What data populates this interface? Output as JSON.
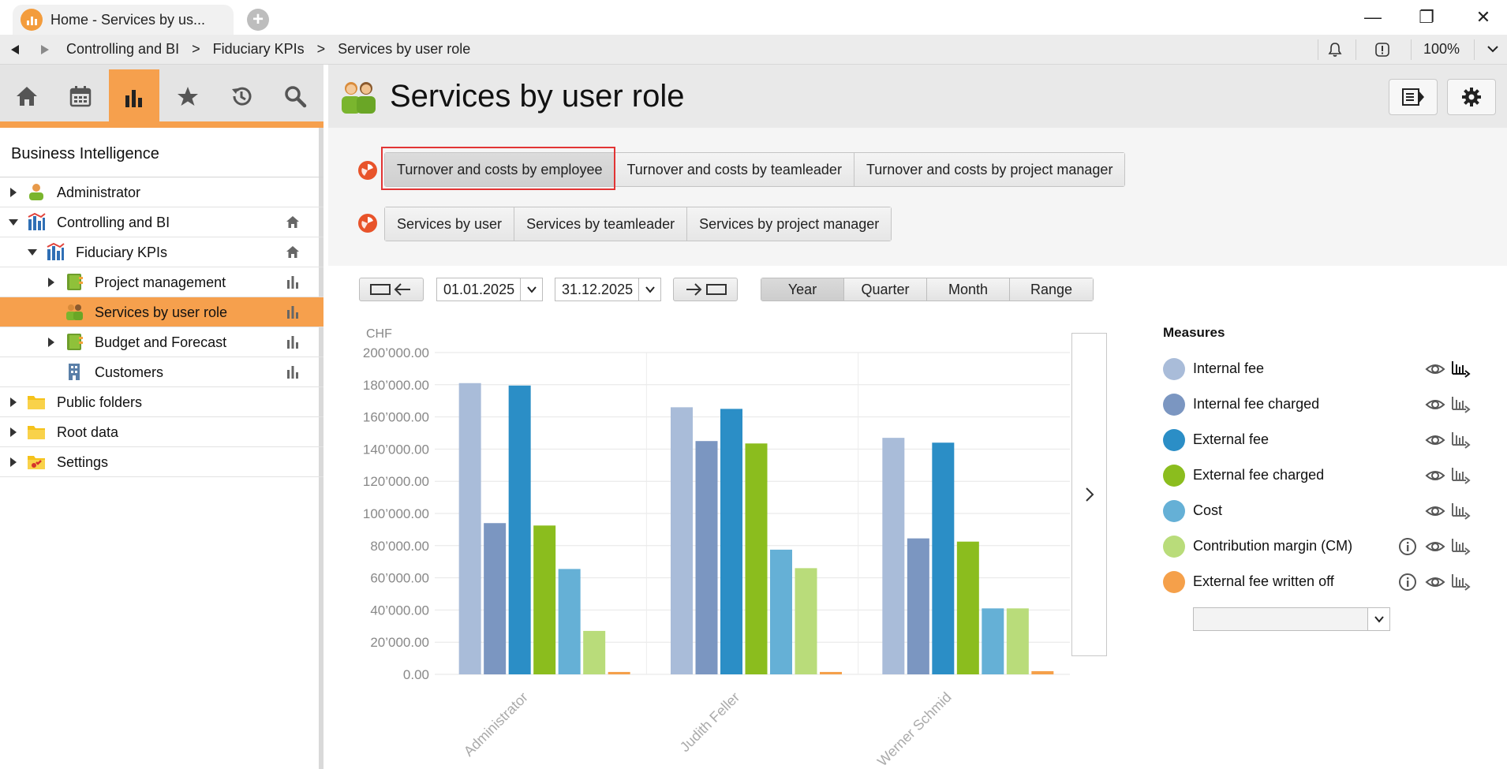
{
  "window": {
    "tab_title": "Home - Services by us...",
    "minimize": "—",
    "restore": "❐",
    "close": "✕"
  },
  "address_bar": {
    "crumbs": [
      "Controlling and BI",
      "Fiduciary KPIs",
      "Services by user role"
    ],
    "separator": ">",
    "zoom": "100%"
  },
  "sidebar": {
    "nav_tabs": [
      "home-icon",
      "calendar-icon",
      "bar-chart-icon",
      "star-icon",
      "history-icon",
      "search-icon"
    ],
    "active_tab": 2,
    "title": "Business Intelligence",
    "tree": [
      {
        "label": "Administrator",
        "level": 0,
        "expander": "right",
        "icon": "user-icon",
        "action": ""
      },
      {
        "label": "Controlling and BI",
        "level": 0,
        "expander": "down",
        "icon": "chart-folder-icon",
        "action": "home-icon"
      },
      {
        "label": "Fiduciary KPIs",
        "level": 1,
        "expander": "down",
        "icon": "chart-folder-icon",
        "action": "home-icon"
      },
      {
        "label": "Project management",
        "level": 2,
        "expander": "right",
        "icon": "project-book-icon",
        "action": "bar-chart-icon"
      },
      {
        "label": "Services by user role",
        "level": 2,
        "expander": "",
        "icon": "user-role-icon",
        "action": "bar-chart-icon",
        "selected": true
      },
      {
        "label": "Budget and Forecast",
        "level": 2,
        "expander": "right",
        "icon": "project-book-icon",
        "action": "bar-chart-icon"
      },
      {
        "label": "Customers",
        "level": 2,
        "expander": "",
        "icon": "building-icon",
        "action": "bar-chart-icon"
      },
      {
        "label": "Public folders",
        "level": 0,
        "expander": "right",
        "icon": "folder-icon",
        "action": ""
      },
      {
        "label": "Root data",
        "level": 0,
        "expander": "right",
        "icon": "folder-icon",
        "action": ""
      },
      {
        "label": "Settings",
        "level": 0,
        "expander": "right",
        "icon": "settings-folder-icon",
        "action": ""
      }
    ]
  },
  "main": {
    "title": "Services by user role",
    "group1": [
      "Turnover and costs by employee",
      "Turnover and costs by teamleader",
      "Turnover and costs by project manager"
    ],
    "group1_active": 0,
    "group2": [
      "Services by user",
      "Services by teamleader",
      "Services by project manager"
    ],
    "date_from": "01.01.2025",
    "date_to": "31.12.2025",
    "periods": [
      "Year",
      "Quarter",
      "Month",
      "Range"
    ],
    "period_active": 0
  },
  "measures": {
    "title": "Measures",
    "items": [
      {
        "label": "Internal fee",
        "color": "#a9bcd9",
        "info": false
      },
      {
        "label": "Internal fee charged",
        "color": "#7b96c1",
        "info": false
      },
      {
        "label": "External fee",
        "color": "#2b8ec6",
        "info": false
      },
      {
        "label": "External fee charged",
        "color": "#8bbd1e",
        "info": false
      },
      {
        "label": "Cost",
        "color": "#65b0d6",
        "info": false
      },
      {
        "label": "Contribution margin (CM)",
        "color": "#b9dc7a",
        "info": true
      },
      {
        "label": "External fee written off",
        "color": "#f5a04a",
        "info": true
      }
    ],
    "select_value": ""
  },
  "chart_data": {
    "type": "bar",
    "ylabel": "CHF",
    "ylim": [
      0,
      200000
    ],
    "yticks": [
      "0.00",
      "20’000.00",
      "40’000.00",
      "60’000.00",
      "80’000.00",
      "100’000.00",
      "120’000.00",
      "140’000.00",
      "160’000.00",
      "180’000.00",
      "200’000.00"
    ],
    "categories": [
      "Administrator",
      "Judith Feller",
      "Werner Schmid"
    ],
    "series": [
      {
        "name": "Internal fee",
        "color": "#a9bcd9",
        "values": [
          181000,
          166000,
          147000
        ]
      },
      {
        "name": "Internal fee charged",
        "color": "#7b96c1",
        "values": [
          94000,
          145000,
          84500
        ]
      },
      {
        "name": "External fee",
        "color": "#2b8ec6",
        "values": [
          179500,
          165000,
          144000
        ]
      },
      {
        "name": "External fee charged",
        "color": "#8bbd1e",
        "values": [
          92500,
          143500,
          82500
        ]
      },
      {
        "name": "Cost",
        "color": "#65b0d6",
        "values": [
          65500,
          77500,
          41000
        ]
      },
      {
        "name": "Contribution margin (CM)",
        "color": "#b9dc7a",
        "values": [
          27000,
          66000,
          41000
        ]
      },
      {
        "name": "External fee written off",
        "color": "#f5a04a",
        "values": [
          1500,
          1500,
          2000
        ]
      }
    ],
    "grid": true,
    "legend": "right"
  }
}
